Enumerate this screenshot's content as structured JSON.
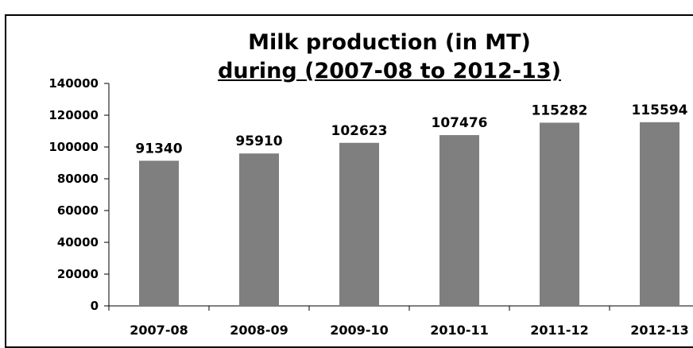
{
  "chart_data": {
    "type": "bar",
    "title": "Milk production (in MT)",
    "subtitle": "during (2007-08 to 2012-13)",
    "xlabel": "",
    "ylabel": "",
    "categories": [
      "2007-08",
      "2008-09",
      "2009-10",
      "2010-11",
      "2011-12",
      "2012-13"
    ],
    "values": [
      91340,
      95910,
      102623,
      107476,
      115282,
      115594
    ],
    "data_labels": [
      "91340",
      "95910",
      "102623",
      "107476",
      "115282",
      "115594"
    ],
    "y_ticks": [
      0,
      20000,
      40000,
      60000,
      80000,
      100000,
      120000,
      140000
    ],
    "y_tick_labels": [
      "0",
      "20000",
      "40000",
      "60000",
      "80000",
      "100000",
      "120000",
      "140000"
    ],
    "ylim": [
      0,
      140000
    ],
    "grid": false,
    "legend": "none",
    "bar_color": "#7f7f7f"
  }
}
